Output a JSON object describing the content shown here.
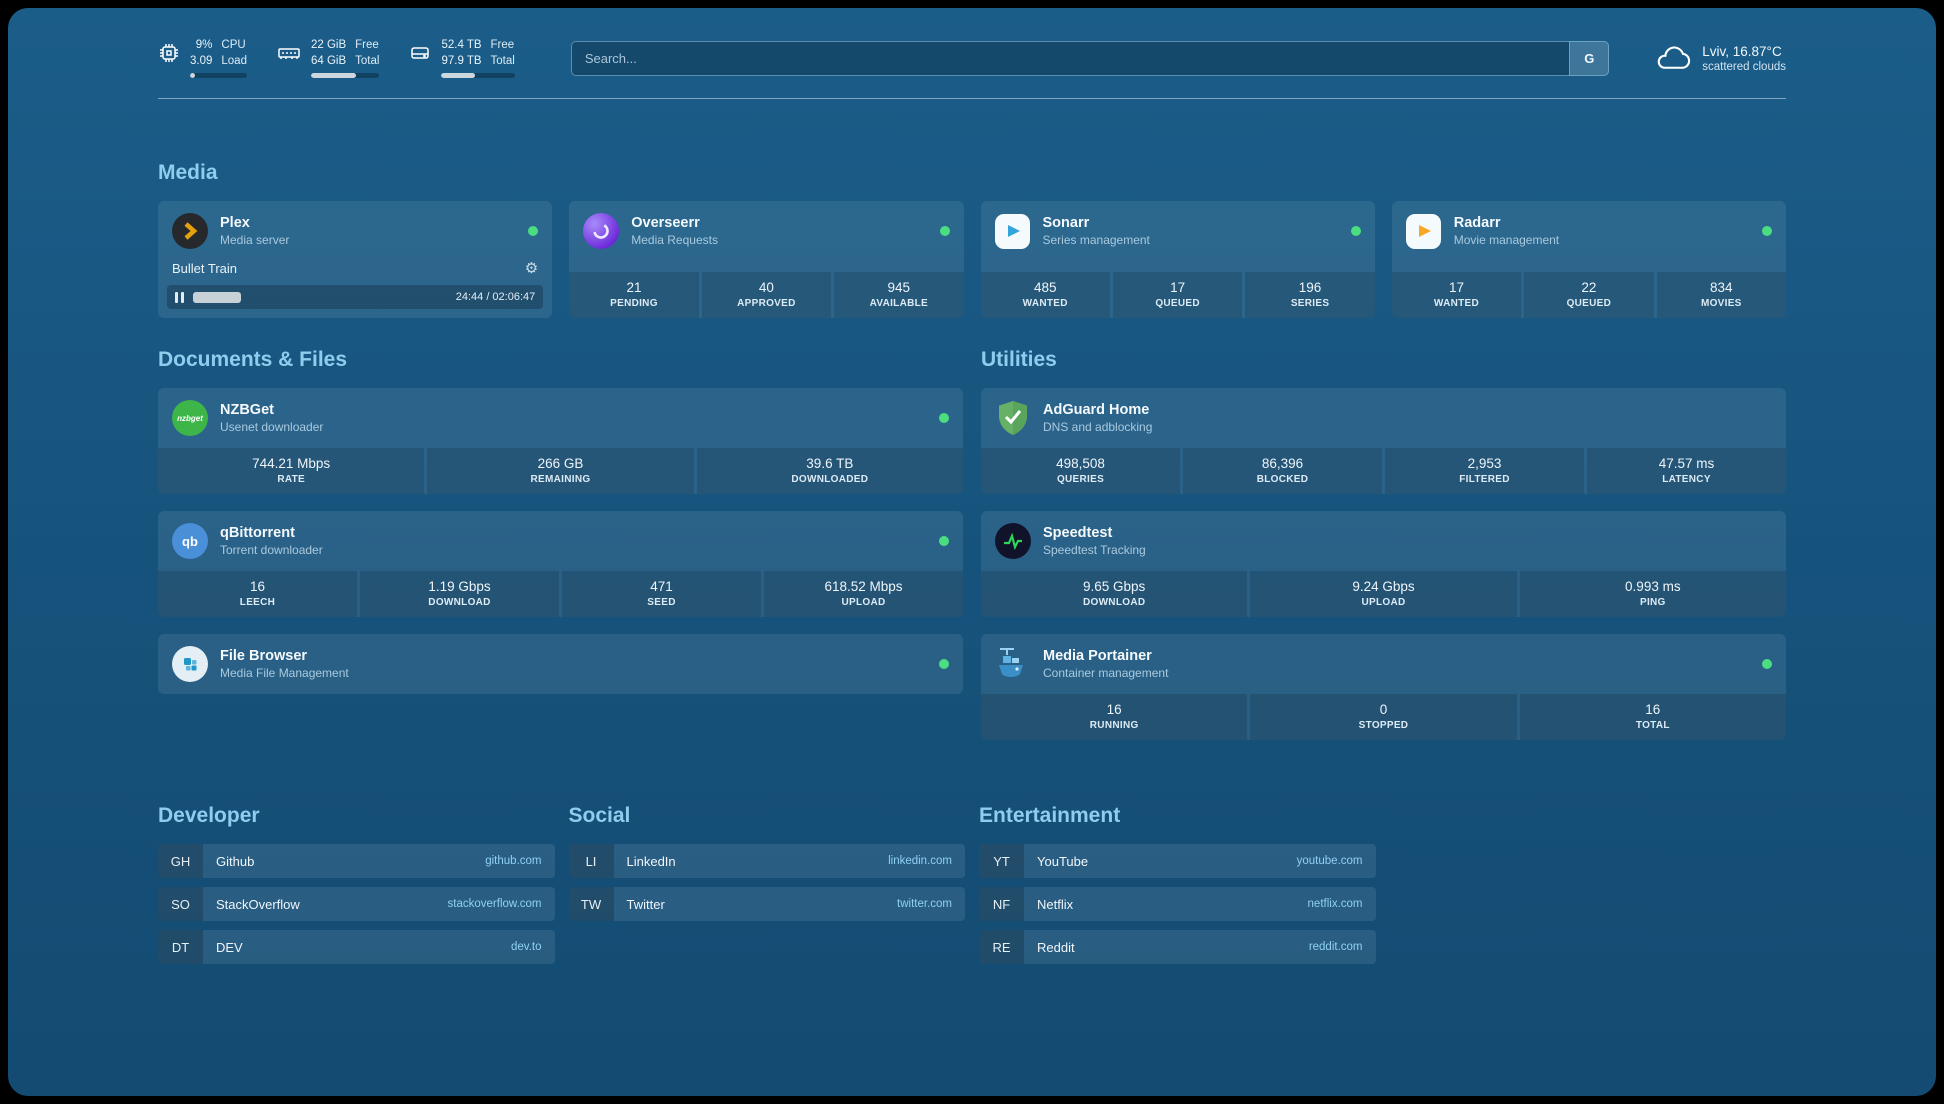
{
  "topbar": {
    "resources": [
      {
        "value_top": "9%",
        "value_bottom": "3.09",
        "label_top": "CPU",
        "label_bottom": "Load",
        "progress_percent": 9
      },
      {
        "value_top": "22 GiB",
        "value_bottom": "64 GiB",
        "label_top": "Free",
        "label_bottom": "Total",
        "progress_percent": 66
      },
      {
        "value_top": "52.4 TB",
        "value_bottom": "97.9 TB",
        "label_top": "Free",
        "label_bottom": "Total",
        "progress_percent": 46
      }
    ],
    "search": {
      "placeholder": "Search...",
      "button_label": "G"
    },
    "weather": {
      "location": "Lviv, 16.87°C",
      "condition": "scattered clouds"
    }
  },
  "media": {
    "heading": "Media",
    "plex": {
      "name": "Plex",
      "desc": "Media server",
      "now_playing": "Bullet Train",
      "time": "24:44 / 02:06:47",
      "progress_percent": 19
    },
    "overseerr": {
      "name": "Overseerr",
      "desc": "Media Requests",
      "stats": [
        {
          "value": "21",
          "label": "PENDING"
        },
        {
          "value": "40",
          "label": "APPROVED"
        },
        {
          "value": "945",
          "label": "AVAILABLE"
        }
      ]
    },
    "sonarr": {
      "name": "Sonarr",
      "desc": "Series management",
      "stats": [
        {
          "value": "485",
          "label": "WANTED"
        },
        {
          "value": "17",
          "label": "QUEUED"
        },
        {
          "value": "196",
          "label": "SERIES"
        }
      ]
    },
    "radarr": {
      "name": "Radarr",
      "desc": "Movie management",
      "stats": [
        {
          "value": "17",
          "label": "WANTED"
        },
        {
          "value": "22",
          "label": "QUEUED"
        },
        {
          "value": "834",
          "label": "MOVIES"
        }
      ]
    }
  },
  "documents": {
    "heading": "Documents & Files",
    "nzbget": {
      "name": "NZBGet",
      "desc": "Usenet downloader",
      "stats": [
        {
          "value": "744.21 Mbps",
          "label": "RATE"
        },
        {
          "value": "266 GB",
          "label": "REMAINING"
        },
        {
          "value": "39.6 TB",
          "label": "DOWNLOADED"
        }
      ]
    },
    "qbittorrent": {
      "name": "qBittorrent",
      "desc": "Torrent downloader",
      "stats": [
        {
          "value": "16",
          "label": "LEECH"
        },
        {
          "value": "1.19 Gbps",
          "label": "DOWNLOAD"
        },
        {
          "value": "471",
          "label": "SEED"
        },
        {
          "value": "618.52 Mbps",
          "label": "UPLOAD"
        }
      ]
    },
    "filebrowser": {
      "name": "File Browser",
      "desc": "Media File Management"
    }
  },
  "utilities": {
    "heading": "Utilities",
    "adguard": {
      "name": "AdGuard Home",
      "desc": "DNS and adblocking",
      "stats": [
        {
          "value": "498,508",
          "label": "QUERIES"
        },
        {
          "value": "86,396",
          "label": "BLOCKED"
        },
        {
          "value": "2,953",
          "label": "FILTERED"
        },
        {
          "value": "47.57 ms",
          "label": "LATENCY"
        }
      ]
    },
    "speedtest": {
      "name": "Speedtest",
      "desc": "Speedtest Tracking",
      "stats": [
        {
          "value": "9.65 Gbps",
          "label": "DOWNLOAD"
        },
        {
          "value": "9.24 Gbps",
          "label": "UPLOAD"
        },
        {
          "value": "0.993 ms",
          "label": "PING"
        }
      ]
    },
    "portainer": {
      "name": "Media Portainer",
      "desc": "Container management",
      "stats": [
        {
          "value": "16",
          "label": "RUNNING"
        },
        {
          "value": "0",
          "label": "STOPPED"
        },
        {
          "value": "16",
          "label": "TOTAL"
        }
      ]
    }
  },
  "bookmarks": {
    "developer": {
      "heading": "Developer",
      "items": [
        {
          "abbr": "GH",
          "name": "Github",
          "domain": "github.com"
        },
        {
          "abbr": "SO",
          "name": "StackOverflow",
          "domain": "stackoverflow.com"
        },
        {
          "abbr": "DT",
          "name": "DEV",
          "domain": "dev.to"
        }
      ]
    },
    "social": {
      "heading": "Social",
      "items": [
        {
          "abbr": "LI",
          "name": "LinkedIn",
          "domain": "linkedin.com"
        },
        {
          "abbr": "TW",
          "name": "Twitter",
          "domain": "twitter.com"
        }
      ]
    },
    "entertainment": {
      "heading": "Entertainment",
      "items": [
        {
          "abbr": "YT",
          "name": "YouTube",
          "domain": "youtube.com"
        },
        {
          "abbr": "NF",
          "name": "Netflix",
          "domain": "netflix.com"
        },
        {
          "abbr": "RE",
          "name": "Reddit",
          "domain": "reddit.com"
        }
      ]
    }
  }
}
